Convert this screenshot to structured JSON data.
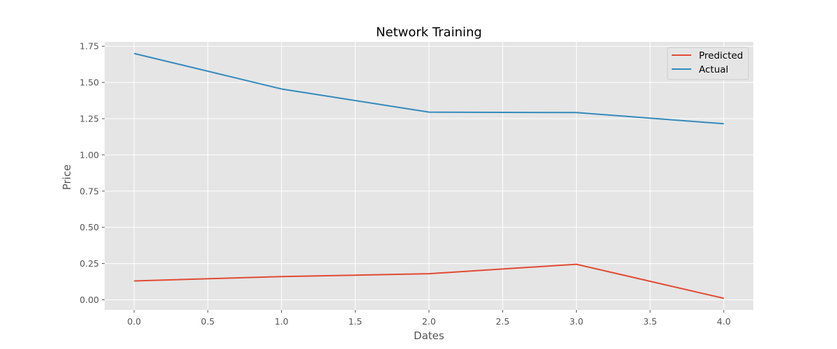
{
  "chart_data": {
    "type": "line",
    "title": "Network Training",
    "xlabel": "Dates",
    "ylabel": "Price",
    "x": [
      0,
      1,
      2,
      3,
      4
    ],
    "xlim": [
      -0.2,
      4.2
    ],
    "ylim": [
      -0.07,
      1.78
    ],
    "xticks": [
      "0.0",
      "0.5",
      "1.0",
      "1.5",
      "2.0",
      "2.5",
      "3.0",
      "3.5",
      "4.0"
    ],
    "yticks": [
      "0.00",
      "0.25",
      "0.50",
      "0.75",
      "1.00",
      "1.25",
      "1.50",
      "1.75"
    ],
    "grid": true,
    "legend_position": "top-right",
    "series": [
      {
        "name": "Predicted",
        "color": "#e24a33",
        "values": [
          0.13,
          0.16,
          0.18,
          0.245,
          0.01
        ]
      },
      {
        "name": "Actual",
        "color": "#348abd",
        "values": [
          1.7,
          1.455,
          1.295,
          1.292,
          1.215
        ]
      }
    ]
  }
}
